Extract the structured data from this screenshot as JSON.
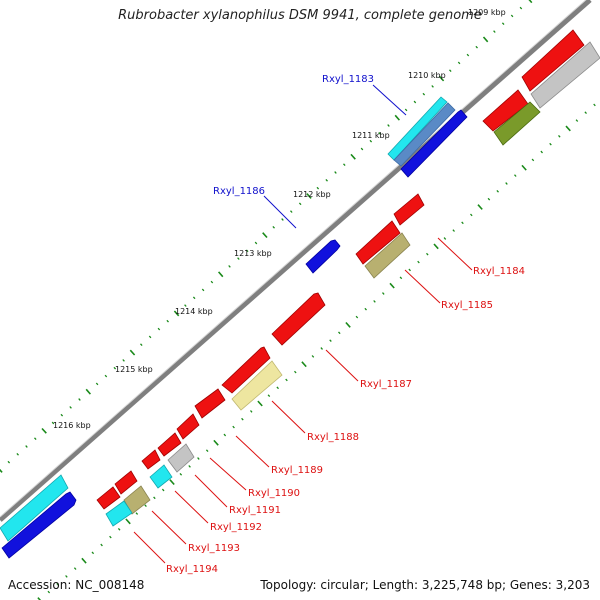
{
  "title": "Rubrobacter xylanophilus DSM 9941, complete genome",
  "accession": "Accession: NC_008148",
  "topology": "Topology: circular; Length: 3,225,748 bp; Genes: 3,203",
  "kbp_labels": [
    "1209 kbp",
    "1210 kbp",
    "1211 kbp",
    "1212 kbp",
    "1213 kbp",
    "1214 kbp",
    "1215 kbp",
    "1216 kbp"
  ],
  "colors": {
    "backbone": "#8a8a8a",
    "tick": "#1a8a1a",
    "red_gene": "#ee1111",
    "blue_gene": "#1111dd",
    "cyan_gene": "#22e6ee",
    "steel_gene": "#5a8ac6",
    "olive_gene": "#7a9a2a",
    "khaki_gene": "#b8b070",
    "pale_gene": "#eee6a0",
    "grey_gene": "#c4c4c4",
    "outer_label": "#1010cc",
    "inner_label": "#dd1111"
  },
  "outer_labels": [
    "Rxyl_1183",
    "Rxyl_1186"
  ],
  "inner_labels": [
    "Rxyl_1184",
    "Rxyl_1185",
    "Rxyl_1187",
    "Rxyl_1188",
    "Rxyl_1189",
    "Rxyl_1190",
    "Rxyl_1191",
    "Rxyl_1192",
    "Rxyl_1193",
    "Rxyl_1194"
  ]
}
